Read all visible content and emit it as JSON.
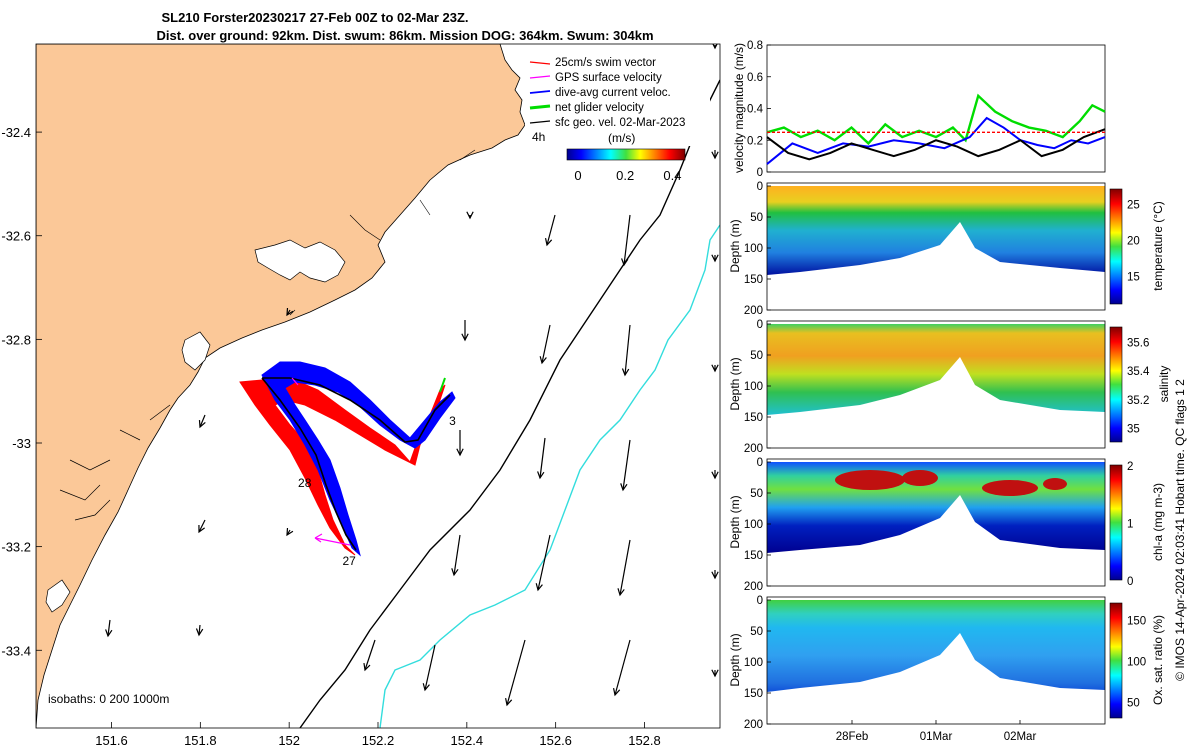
{
  "title": {
    "line1": "SL210 Forster20230217 27-Feb 00Z to 02-Mar 23Z.",
    "line2": "Dist. over ground: 92km. Dist. swum: 86km. Mission DOG: 364km. Swum: 304km"
  },
  "colors": {
    "land": "#fbc898",
    "red_track": "#ff0000",
    "blue_track": "#0000ff",
    "green": "#00dd00",
    "magenta": "#ff00ff",
    "cyan_isobath": "#33dddd"
  },
  "map": {
    "x_ticks": [
      "151.6",
      "151.8",
      "152",
      "152.2",
      "152.4",
      "152.6",
      "152.8"
    ],
    "y_ticks": [
      "-32.4",
      "-32.6",
      "-32.8",
      "-33",
      "-33.2",
      "-33.4"
    ],
    "xlim": [
      151.43,
      152.97
    ],
    "ylim": [
      -33.55,
      -32.23
    ],
    "isobaths_label": "isobaths: 0   200  1000m",
    "legend": [
      {
        "label": "25cm/s swim vector",
        "color": "#ff0000"
      },
      {
        "label": "GPS surface velocity",
        "color": "#ff00ff"
      },
      {
        "label": "dive-avg current veloc.",
        "color": "#0000ff"
      },
      {
        "label": "net glider velocity",
        "color": "#00dd00"
      },
      {
        "label": "sfc geo. vel. 02-Mar-2023",
        "color": "#000000"
      }
    ],
    "legend_extra": "4h",
    "colorbar": {
      "unit": "(m/s)",
      "ticks": [
        "0",
        "0.2",
        "0.4"
      ],
      "range": [
        0,
        0.5
      ]
    },
    "track_labels": [
      {
        "text": "3",
        "lon": 152.36,
        "lat": -32.965
      },
      {
        "text": "28",
        "lon": 152.02,
        "lat": -33.085
      },
      {
        "text": "27",
        "lon": 152.12,
        "lat": -33.235
      }
    ]
  },
  "chart_data": [
    {
      "type": "line",
      "ylabel": "velocity magnitude (m/s)",
      "ylim": [
        0,
        0.8
      ],
      "yticks": [
        "0",
        "0.2",
        "0.4",
        "0.6",
        "0.8"
      ],
      "xlim": [
        0,
        4
      ],
      "series": [
        {
          "color": "#00dd00",
          "x": [
            0,
            0.2,
            0.4,
            0.6,
            0.8,
            1.0,
            1.2,
            1.4,
            1.6,
            1.8,
            2.0,
            2.2,
            2.35,
            2.5,
            2.7,
            2.9,
            3.1,
            3.3,
            3.5,
            3.7,
            3.85,
            4.0
          ],
          "y": [
            0.25,
            0.28,
            0.22,
            0.26,
            0.2,
            0.28,
            0.18,
            0.3,
            0.22,
            0.26,
            0.22,
            0.28,
            0.2,
            0.48,
            0.38,
            0.32,
            0.28,
            0.26,
            0.22,
            0.32,
            0.42,
            0.38
          ]
        },
        {
          "color": "#0000ff",
          "x": [
            0,
            0.3,
            0.6,
            0.9,
            1.2,
            1.5,
            1.8,
            2.1,
            2.4,
            2.6,
            2.8,
            3.0,
            3.2,
            3.4,
            3.6,
            3.8,
            4.0
          ],
          "y": [
            0.05,
            0.18,
            0.12,
            0.18,
            0.16,
            0.2,
            0.18,
            0.15,
            0.22,
            0.34,
            0.28,
            0.2,
            0.17,
            0.15,
            0.2,
            0.18,
            0.22
          ]
        },
        {
          "color": "#000000",
          "x": [
            0,
            0.25,
            0.5,
            0.75,
            1.0,
            1.25,
            1.5,
            1.75,
            2.0,
            2.25,
            2.5,
            2.75,
            3.0,
            3.25,
            3.5,
            3.75,
            4.0
          ],
          "y": [
            0.22,
            0.12,
            0.08,
            0.12,
            0.18,
            0.14,
            0.1,
            0.14,
            0.2,
            0.16,
            0.1,
            0.14,
            0.2,
            0.1,
            0.14,
            0.22,
            0.27
          ]
        },
        {
          "color": "#ff0000",
          "x": [
            0,
            1,
            2,
            3,
            4
          ],
          "y": [
            0.25,
            0.25,
            0.25,
            0.25,
            0.25
          ]
        }
      ]
    },
    {
      "type": "heatmap",
      "ylabel": "Depth (m)",
      "yticks": [
        "0",
        "50",
        "100",
        "150",
        "200"
      ],
      "cbar_label": "temperature (°C)",
      "cbar_ticks": [
        "15",
        "20",
        "25"
      ],
      "crange": [
        11,
        27
      ]
    },
    {
      "type": "heatmap",
      "ylabel": "Depth (m)",
      "yticks": [
        "0",
        "50",
        "100",
        "150",
        "200"
      ],
      "cbar_label": "salinity",
      "cbar_ticks": [
        "35",
        "35.2",
        "35.4",
        "35.6"
      ],
      "crange": [
        34.9,
        35.7
      ]
    },
    {
      "type": "heatmap",
      "ylabel": "Depth (m)",
      "yticks": [
        "0",
        "50",
        "100",
        "150",
        "200"
      ],
      "cbar_label": "chl-a (mg m-3)",
      "cbar_ticks": [
        "0",
        "1",
        "2"
      ],
      "crange": [
        0,
        2
      ]
    },
    {
      "type": "heatmap",
      "ylabel": "Depth (m)",
      "yticks": [
        "0",
        "50",
        "100",
        "150",
        "200"
      ],
      "cbar_label": "Ox. sat. ratio (%)",
      "cbar_ticks": [
        "50",
        "100",
        "150"
      ],
      "crange": [
        30,
        170
      ],
      "x_ticks": [
        "28Feb",
        "01Mar",
        "02Mar"
      ]
    }
  ],
  "side_note": "© IMOS 14-Apr-2024 02:03:41 Hobart time. QC flags 1  2"
}
